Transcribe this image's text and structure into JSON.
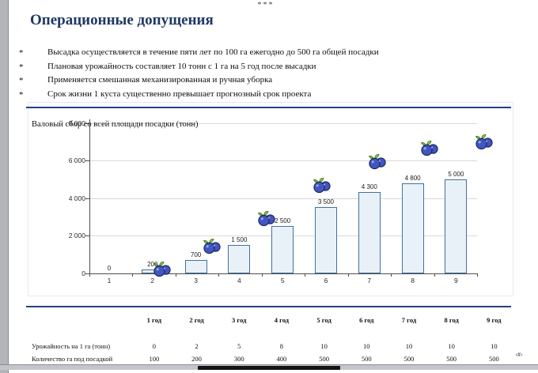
{
  "window": {
    "top_marker": "***",
    "page_number_placeholder": "‹#›"
  },
  "slide": {
    "title": "Операционные допущения",
    "bullet_marker": "*",
    "bullets": [
      "Высадка осуществляется в течение пяти лет по 100 га ежегодно до 500 га общей посадки",
      "Плановая урожайность составляет 10 тонн с 1 га на 5 год после высадки",
      "Применяется смешанная механизированная и ручная уборка",
      "Срок жизни 1 куста существенно превышает прогнозный срок проекта"
    ]
  },
  "chart_data": {
    "type": "bar",
    "title": "Валовый сбор со всей площади посадки (тонн)",
    "categories": [
      "1",
      "2",
      "3",
      "4",
      "5",
      "6",
      "7",
      "8",
      "9"
    ],
    "values": [
      0,
      200,
      700,
      1500,
      2500,
      3500,
      4300,
      4800,
      5000
    ],
    "value_labels": [
      "0",
      "200",
      "700",
      "1 500",
      "2 500",
      "3 500",
      "4 300",
      "4 800",
      "5 000"
    ],
    "ylim": [
      0,
      8000
    ],
    "yticks": [
      {
        "value": 0,
        "label": "0"
      },
      {
        "value": 2000,
        "label": "2 000"
      },
      {
        "value": 4000,
        "label": "4 000"
      },
      {
        "value": 6000,
        "label": "6 000"
      },
      {
        "value": 8000,
        "label": "8 000"
      }
    ],
    "grid": true,
    "legend": "none",
    "colors": {
      "bar_fill": "#e9f1f8",
      "bar_border": "#41719c",
      "gridline": "#d9d9d9"
    },
    "decorations": {
      "icon": "blueberry",
      "points": [
        {
          "x": 2.22,
          "y": 200
        },
        {
          "x": 3.37,
          "y": 1430
        },
        {
          "x": 4.63,
          "y": 2890
        },
        {
          "x": 5.91,
          "y": 4650
        },
        {
          "x": 7.19,
          "y": 5900
        },
        {
          "x": 8.39,
          "y": 6640
        },
        {
          "x": 9.65,
          "y": 6960
        }
      ]
    }
  },
  "table": {
    "col_headers": [
      "1 год",
      "2 год",
      "3 год",
      "4 год",
      "5 год",
      "6 год",
      "7 год",
      "8 год",
      "9 год"
    ],
    "rows": [
      {
        "label": "Урожайность на 1 га (тонн)",
        "values": [
          "0",
          "2",
          "5",
          "8",
          "10",
          "10",
          "10",
          "10",
          "10"
        ]
      },
      {
        "label": "Количество га под посадкой",
        "values": [
          "100",
          "200",
          "300",
          "400",
          "500",
          "500",
          "500",
          "500",
          "500"
        ]
      }
    ]
  }
}
